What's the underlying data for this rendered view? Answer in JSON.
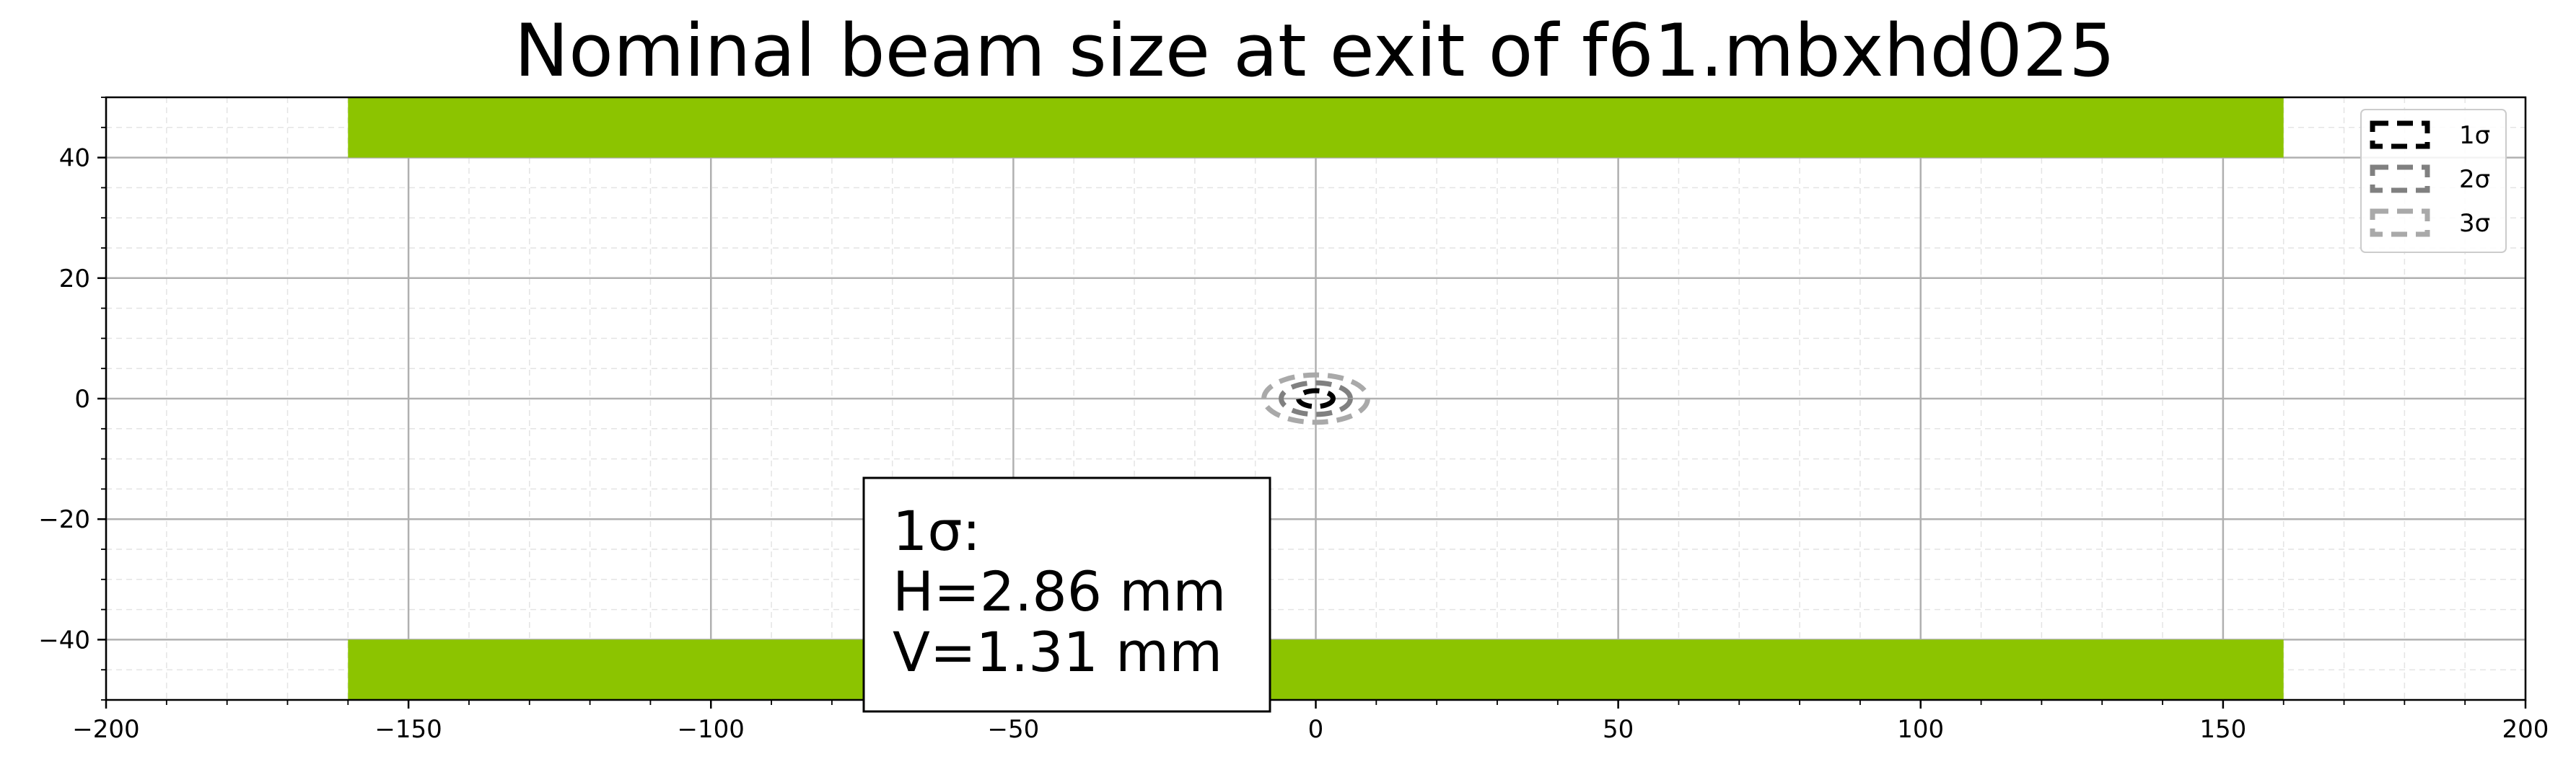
{
  "chart_data": {
    "type": "area",
    "title": "Nominal beam size at exit of f61.mbxhd025",
    "xlabel": "",
    "ylabel": "",
    "xlim": [
      -200,
      200
    ],
    "ylim": [
      -50,
      50
    ],
    "xticks": [
      -200,
      -150,
      -100,
      -50,
      0,
      50,
      100,
      150,
      200
    ],
    "xtick_labels": [
      "−200",
      "−150",
      "−100",
      "−50",
      "0",
      "50",
      "100",
      "150",
      "200"
    ],
    "yticks": [
      -40,
      -20,
      0,
      20,
      40
    ],
    "ytick_labels": [
      "−40",
      "−20",
      "0",
      "20",
      "40"
    ],
    "grid": true,
    "minor_grid": true,
    "aperture": {
      "color": "#8cc400",
      "blocks": [
        {
          "x": [
            -160,
            160
          ],
          "y": [
            40,
            50
          ]
        },
        {
          "x": [
            -160,
            160
          ],
          "y": [
            -50,
            -40
          ]
        }
      ]
    },
    "series": [
      {
        "name": "1σ",
        "h": 2.86,
        "v": 1.31,
        "color": "#000000"
      },
      {
        "name": "2σ",
        "h": 5.72,
        "v": 2.62,
        "color": "#808080"
      },
      {
        "name": "3σ",
        "h": 8.58,
        "v": 3.93,
        "color": "#a9a9a9"
      }
    ],
    "legend_position": "top-right",
    "annotation": {
      "line1": "1σ:",
      "line2": "H=2.86 mm",
      "line3": "V=1.31 mm"
    }
  }
}
